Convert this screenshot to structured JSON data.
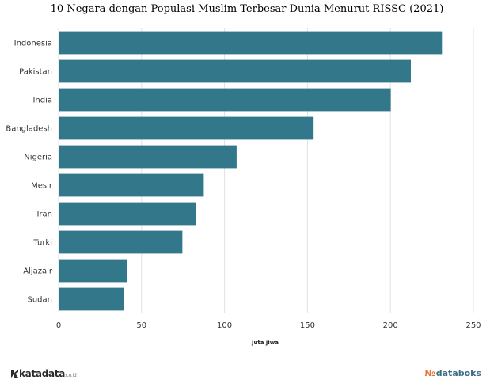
{
  "chart_data": {
    "type": "bar",
    "orientation": "horizontal",
    "title": "10 Negara dengan Populasi Muslim Terbesar Dunia Menurut RISSC (2021)",
    "xlabel": "juta jiwa",
    "ylabel": "",
    "categories": [
      "Indonesia",
      "Pakistan",
      "India",
      "Bangladesh",
      "Nigeria",
      "Mesir",
      "Iran",
      "Turki",
      "Aljazair",
      "Sudan"
    ],
    "values": [
      231.06,
      212.3,
      200.2,
      153.7,
      107.3,
      87.5,
      82.6,
      74.6,
      41.5,
      39.6
    ],
    "xlim": [
      0,
      250
    ],
    "xticks": [
      0,
      50,
      100,
      150,
      200,
      250
    ],
    "bar_color": "#33788a",
    "grid": true
  },
  "branding": {
    "left": "katadata",
    "left_suffix": ".co.id",
    "right": "databoks"
  }
}
